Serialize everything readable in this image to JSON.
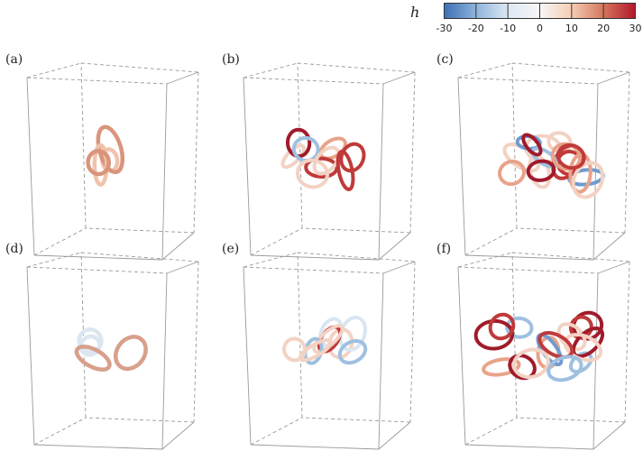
{
  "colorbar": {
    "symbol": "h",
    "ticks": [
      "-30",
      "-20",
      "-10",
      "0",
      "10",
      "20",
      "30"
    ],
    "range": [
      -30,
      30
    ],
    "colors": [
      "#3d6fb6",
      "#8fb4da",
      "#dce8f3",
      "#f7f7f7",
      "#f5cdb4",
      "#d3755c",
      "#b2182b"
    ]
  },
  "panels": [
    {
      "label": "(a)",
      "complexity": 1,
      "dominant_color": "#d9957c"
    },
    {
      "label": "(b)",
      "complexity": 2,
      "dominant_color": "#c03a3a"
    },
    {
      "label": "(c)",
      "complexity": 3,
      "dominant_color": "#c03a3a"
    },
    {
      "label": "(d)",
      "complexity": 1,
      "dominant_color": "#d8a08b"
    },
    {
      "label": "(e)",
      "complexity": 2,
      "dominant_color": "#c03a3a"
    },
    {
      "label": "(f)",
      "complexity": 3,
      "dominant_color": "#c03a3a"
    }
  ]
}
